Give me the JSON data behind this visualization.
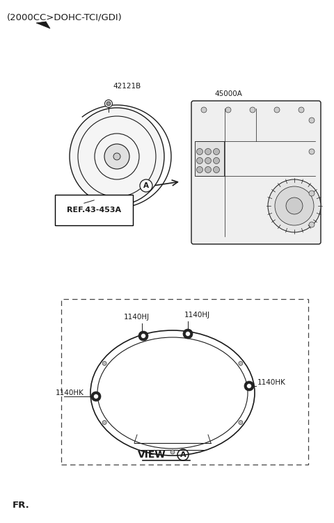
{
  "title": "(2000CC>DOHC-TCI/GDI)",
  "bg_color": "#ffffff",
  "line_color": "#1a1a1a",
  "label_42121B": "42121B",
  "label_45000A": "45000A",
  "label_ref": "REF.43-453A",
  "label_A": "A",
  "label_1140HJ_1": "1140HJ",
  "label_1140HJ_2": "1140HJ",
  "label_1140HK_1": "1140HK",
  "label_1140HK_2": "1140HK",
  "label_view": "VIEW",
  "label_view_A": "A",
  "label_fr": "FR.",
  "font_size_title": 9.5,
  "font_size_label": 7.5,
  "font_size_view": 10
}
